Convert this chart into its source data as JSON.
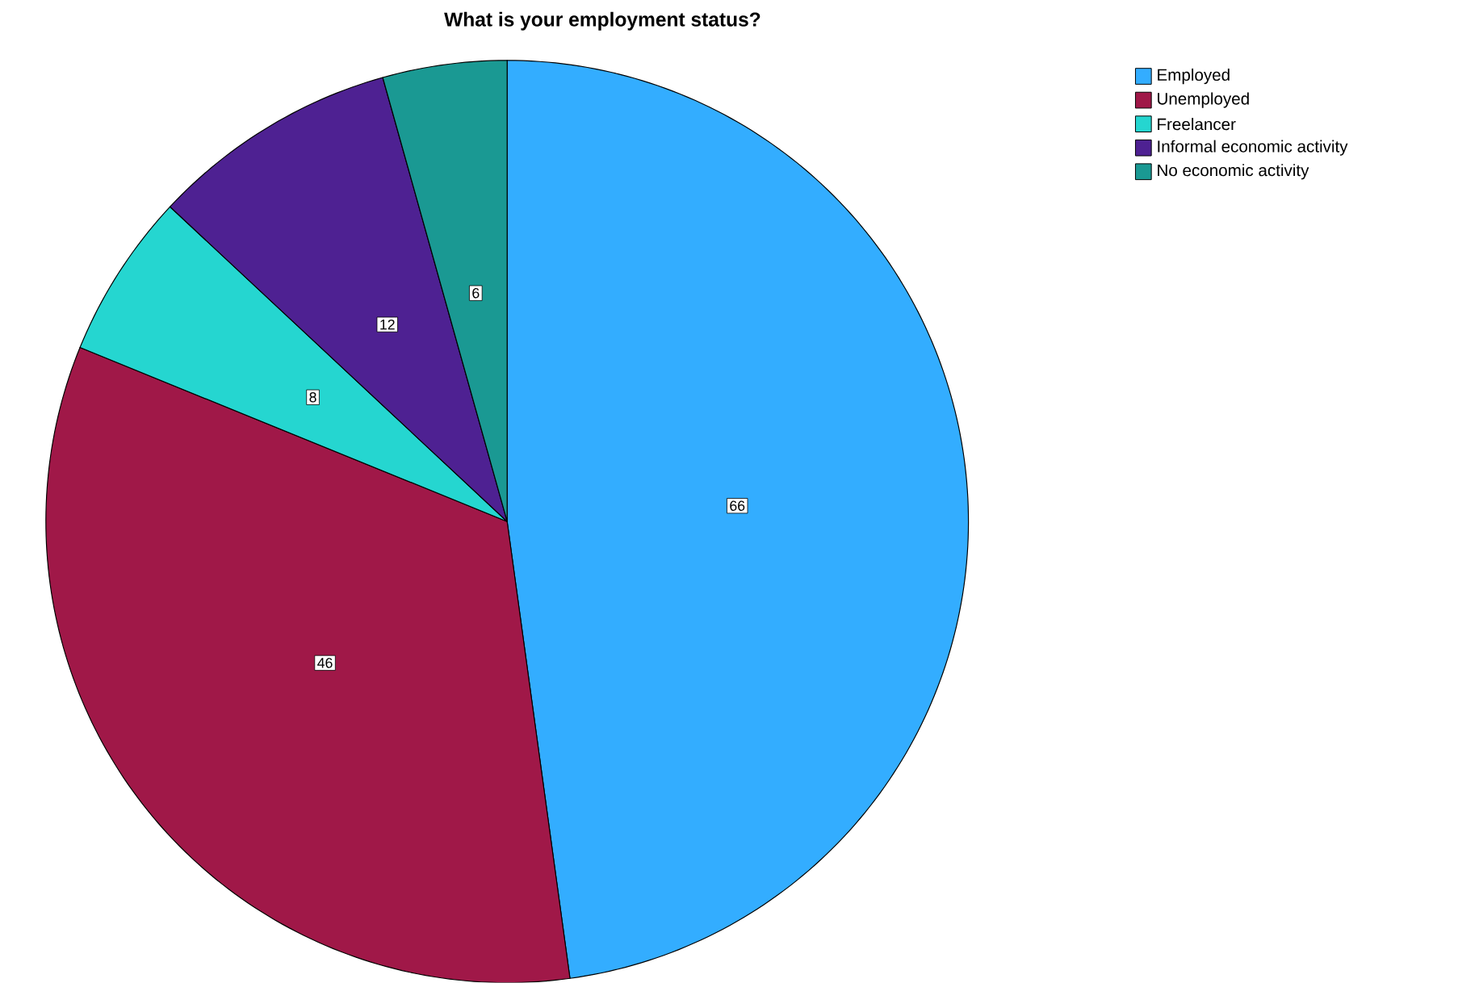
{
  "chart_data": {
    "type": "pie",
    "title": "What is your employment status?",
    "categories": [
      "Employed",
      "Unemployed",
      "Freelancer",
      "Informal economic activity",
      "No economic activity"
    ],
    "values": [
      66,
      46,
      8,
      12,
      6
    ],
    "colors": [
      "#33adff",
      "#a01848",
      "#25d6d0",
      "#4e2192",
      "#1a9993"
    ],
    "data_labels": true,
    "legend": "top right"
  }
}
